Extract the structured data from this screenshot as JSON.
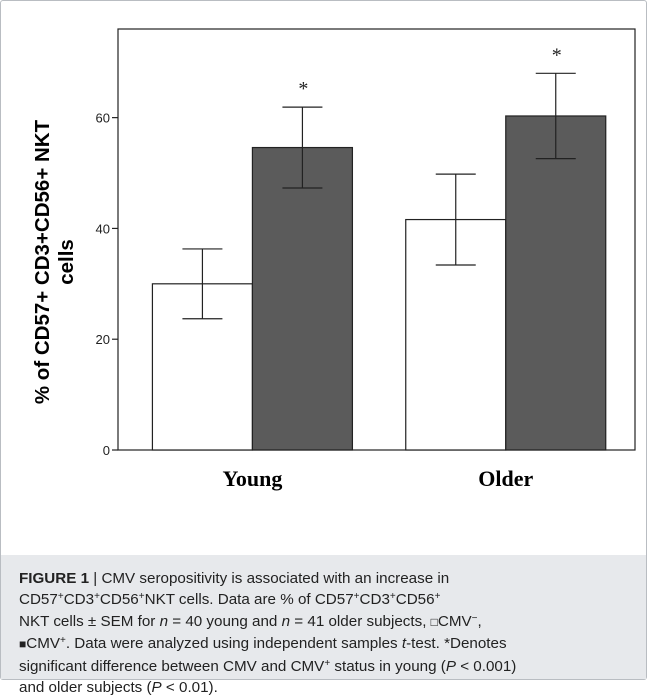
{
  "chart_data": {
    "type": "bar",
    "categories": [
      "Young",
      "Older"
    ],
    "series": [
      {
        "name": "CMV−",
        "values": [
          30.0,
          41.6
        ],
        "sem": [
          6.3,
          8.2
        ],
        "color": "#ffffff"
      },
      {
        "name": "CMV+",
        "values": [
          54.6,
          60.3
        ],
        "sem": [
          7.3,
          7.7
        ],
        "color": "#5b5b5b"
      }
    ],
    "significance": [
      "*",
      "*"
    ],
    "ylabel": "% of CD57+ CD3+CD56+ NKT cells",
    "ylabel_lines": [
      "% of CD57+ CD3+CD56+ NKT",
      "cells"
    ],
    "ylim": [
      0,
      76
    ],
    "yticks": [
      0,
      20,
      40,
      60
    ],
    "grid": false
  },
  "caption": {
    "figure_label": "FIGURE 1",
    "separator": " | ",
    "l1_text": "CMV seropositivity is associated with an increase in",
    "l2_a": "CD57",
    "l2_b": "CD3",
    "l2_c": "CD56",
    "l2_d": "NKT cells. Data are % of CD57",
    "l2_e": "CD3",
    "l2_f": "CD56",
    "l3_a": "NKT cells ± SEM for ",
    "l3_n": "n",
    "l3_b": " = 40 young and ",
    "l3_n2": "n",
    "l3_c": " = 41 older subjects, ",
    "l3_neg_box": "□",
    "l3_d": "CMV",
    "l3_neg": "−",
    "l3_e": ",",
    "l4_box": "■",
    "l4_a": "CMV",
    "l4_b": ". Data were analyzed using independent samples ",
    "l4_t": "t",
    "l4_c": "-test. *Denotes",
    "l5_a": "significant difference between CMV and CMV",
    "l5_b": " status in young (",
    "l5_p": "P",
    "l5_c": " < 0.001)",
    "l6_a": "and older subjects (",
    "l6_p": "P",
    "l6_b": " < 0.01).",
    "plus": "+"
  }
}
